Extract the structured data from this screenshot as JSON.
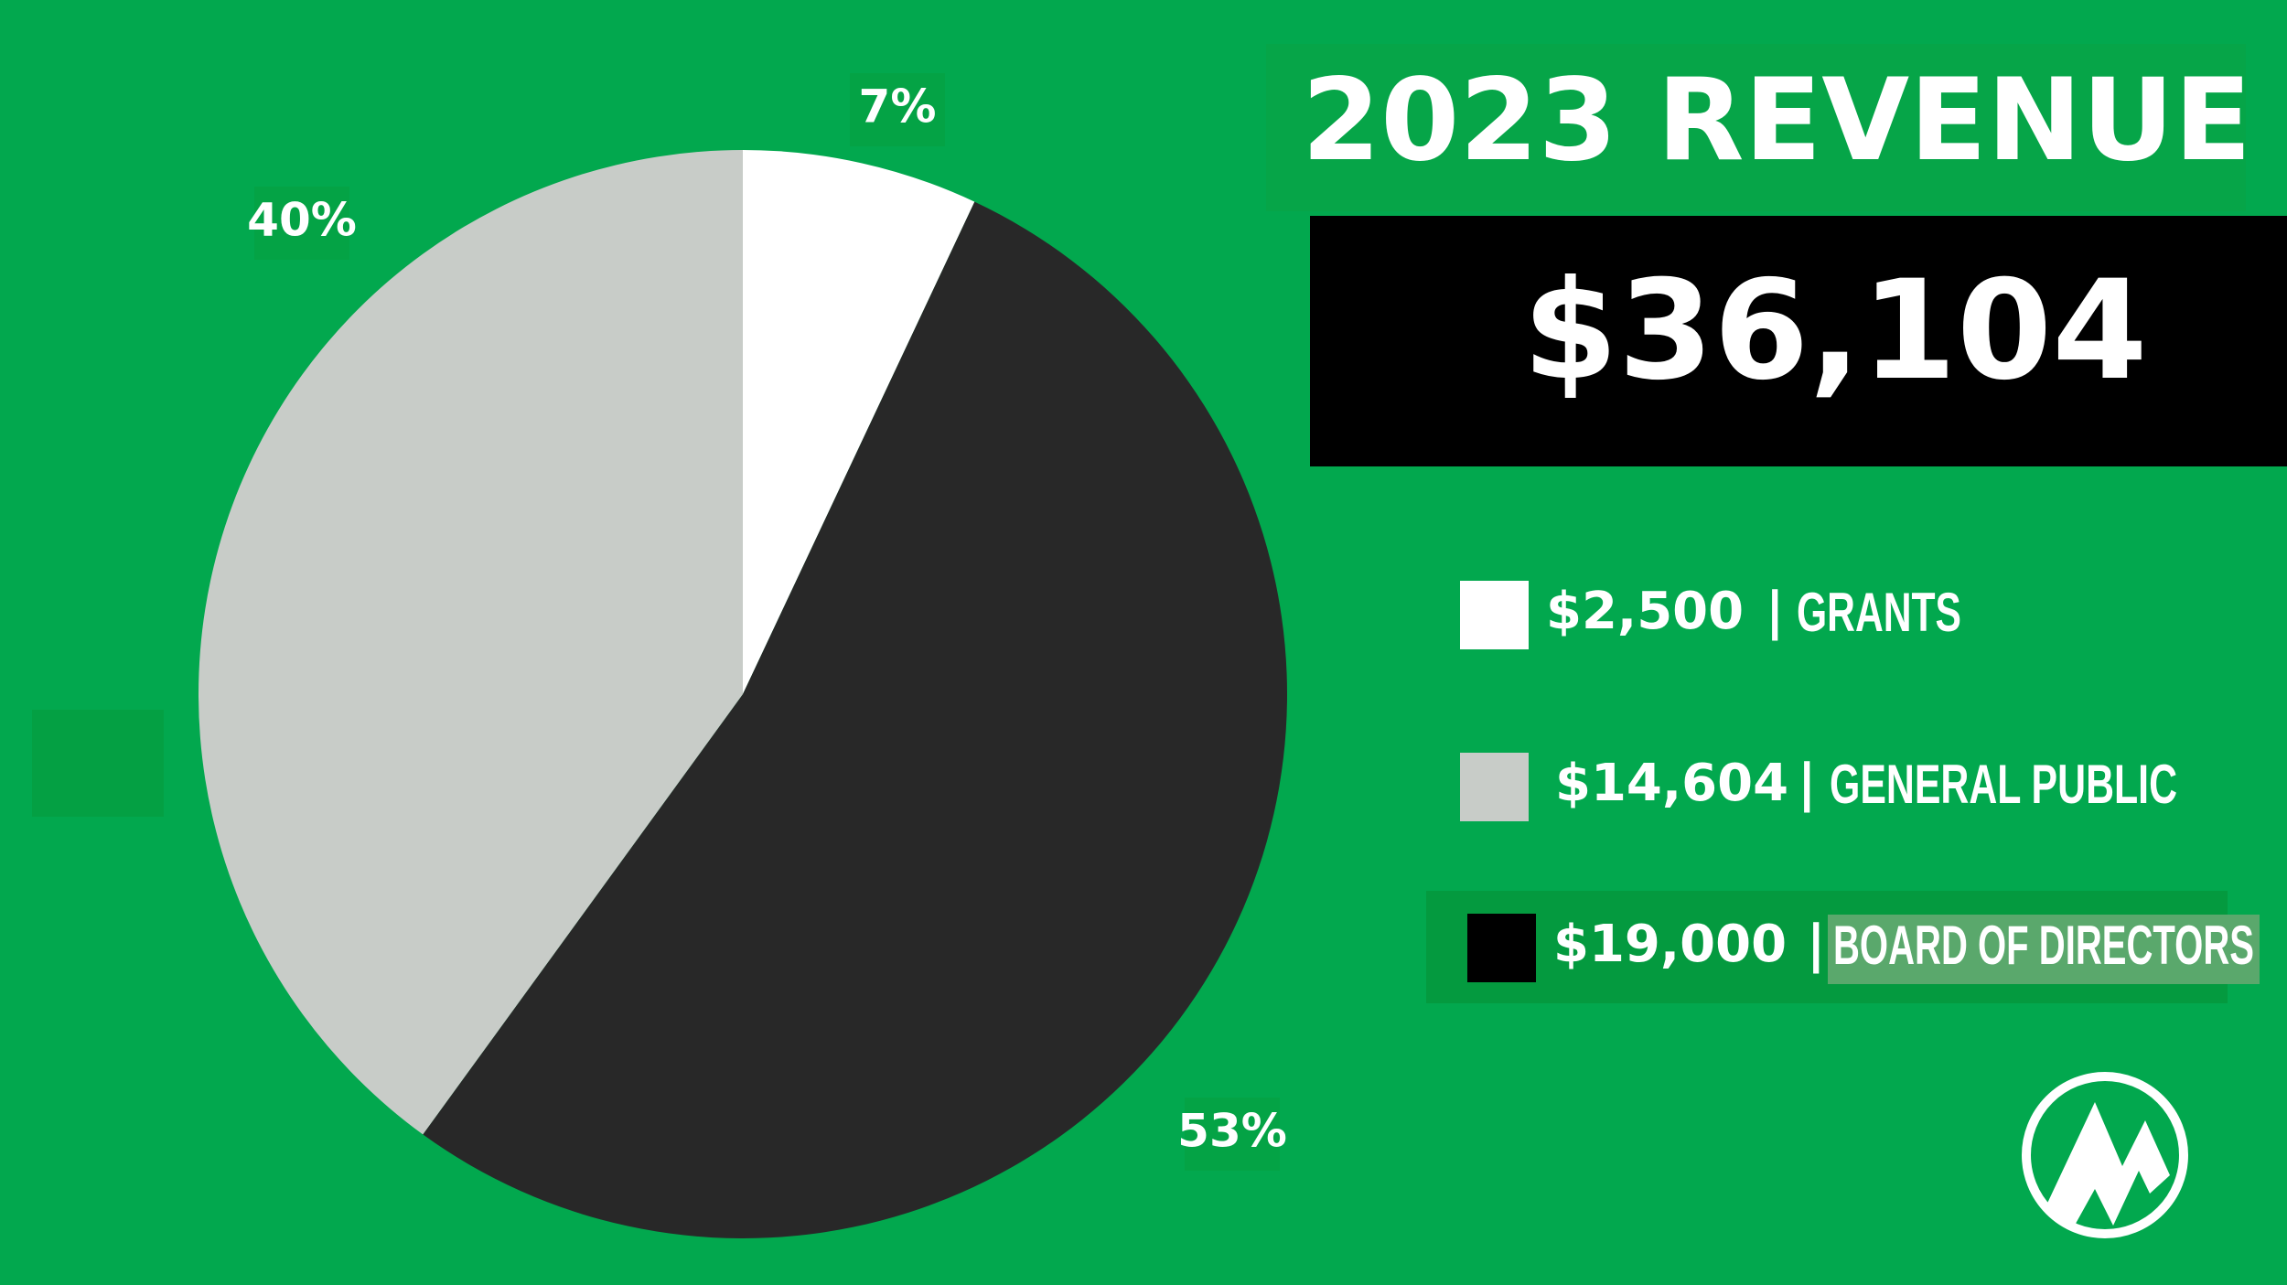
{
  "chart_data": {
    "type": "pie",
    "title": "2023 REVENUE",
    "total": "$36,104",
    "categories": [
      "GRANTS",
      "BOARD OF DIRECTORS",
      "GENERAL PUBLIC"
    ],
    "values": [
      7,
      53,
      40
    ],
    "value_labels": [
      "7%",
      "53%",
      "40%"
    ],
    "colors": [
      "#ffffff",
      "#282828",
      "#c8ccc8"
    ],
    "legend_amounts": [
      "$2,500",
      "$19,000",
      "$14,604"
    ],
    "legend_separator": "|"
  }
}
